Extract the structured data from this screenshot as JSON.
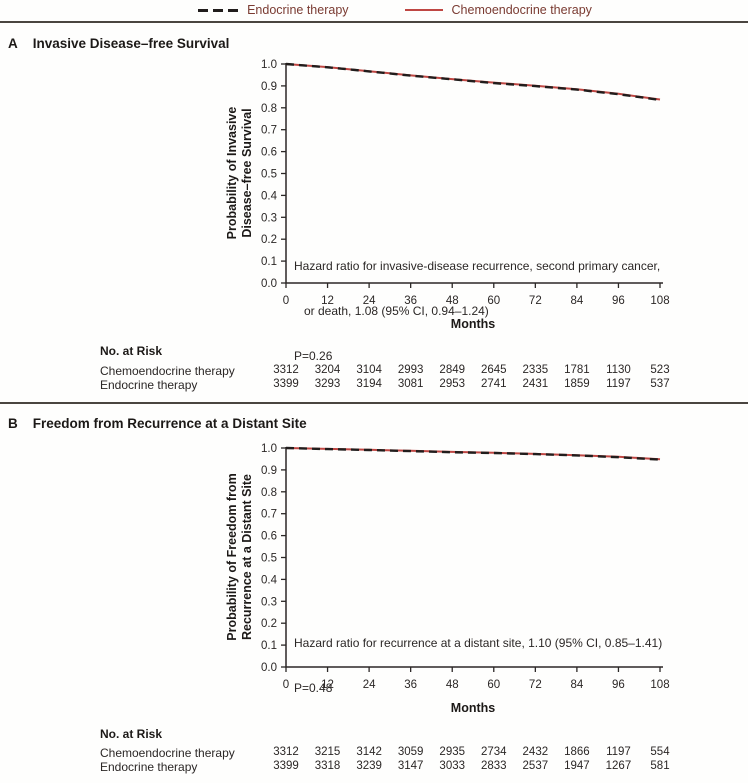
{
  "figure": {
    "legend": {
      "items": [
        {
          "label": "Endocrine therapy",
          "line_style": "dashed",
          "color": "#211d1c"
        },
        {
          "label": "Chemoendocrine therapy",
          "line_style": "solid",
          "color": "#bf4743"
        }
      ]
    },
    "panels": [
      {
        "letter": "A",
        "title": "Invasive Disease–free Survival",
        "ylabel_lines": [
          "Probability of Invasive",
          "Disease–free Survival"
        ],
        "xlabel": "Months",
        "annotation_lines": [
          "Hazard ratio for invasive-disease recurrence, second primary cancer,",
          "   or death, 1.08 (95% CI, 0.94–1.24)",
          "P=0.26"
        ],
        "risk_table": {
          "title": "No. at Risk",
          "rows": [
            {
              "label": "Chemoendocrine therapy",
              "values": [
                3312,
                3204,
                3104,
                2993,
                2849,
                2645,
                2335,
                1781,
                1130,
                523
              ]
            },
            {
              "label": "Endocrine therapy",
              "values": [
                3399,
                3293,
                3194,
                3081,
                2953,
                2741,
                2431,
                1859,
                1197,
                537
              ]
            }
          ]
        }
      },
      {
        "letter": "B",
        "title": "Freedom from Recurrence at a Distant Site",
        "ylabel_lines": [
          "Probability of Freedom from",
          "Recurrence at a Distant Site"
        ],
        "xlabel": "Months",
        "annotation_lines": [
          "Hazard ratio for recurrence at a distant site, 1.10 (95% CI, 0.85–1.41)",
          "P=0.48"
        ],
        "risk_table": {
          "title": "No. at Risk",
          "rows": [
            {
              "label": "Chemoendocrine therapy",
              "values": [
                3312,
                3215,
                3142,
                3059,
                2935,
                2734,
                2432,
                1866,
                1197,
                554
              ]
            },
            {
              "label": "Endocrine therapy",
              "values": [
                3399,
                3318,
                3239,
                3147,
                3033,
                2833,
                2537,
                1947,
                1267,
                581
              ]
            }
          ]
        }
      }
    ]
  },
  "chart_data": [
    {
      "type": "line",
      "panel": "A",
      "title": "Invasive Disease–free Survival",
      "xlabel": "Months",
      "ylabel": "Probability of Invasive Disease–free Survival",
      "x": [
        0,
        12,
        24,
        36,
        48,
        60,
        72,
        84,
        96,
        108
      ],
      "xticks": [
        0,
        12,
        24,
        36,
        48,
        60,
        72,
        84,
        96,
        108
      ],
      "yticks": [
        0.0,
        0.1,
        0.2,
        0.3,
        0.4,
        0.5,
        0.6,
        0.7,
        0.8,
        0.9,
        1.0
      ],
      "xlim": [
        0,
        108
      ],
      "ylim": [
        0.0,
        1.0
      ],
      "grid": false,
      "legend_position": "top-center",
      "series": [
        {
          "name": "Endocrine therapy",
          "line_style": "dashed",
          "color": "#211d1c",
          "values": [
            1.0,
            0.985,
            0.966,
            0.947,
            0.93,
            0.913,
            0.899,
            0.883,
            0.862,
            0.836
          ]
        },
        {
          "name": "Chemoendocrine therapy",
          "line_style": "solid",
          "color": "#bf4743",
          "values": [
            1.0,
            0.986,
            0.967,
            0.948,
            0.931,
            0.915,
            0.901,
            0.885,
            0.864,
            0.838
          ]
        }
      ],
      "annotation": "Hazard ratio for invasive-disease recurrence, second primary cancer, or death, 1.08 (95% CI, 0.94–1.24)",
      "p_value": "P=0.26"
    },
    {
      "type": "line",
      "panel": "B",
      "title": "Freedom from Recurrence at a Distant Site",
      "xlabel": "Months",
      "ylabel": "Probability of Freedom from Recurrence at a Distant Site",
      "x": [
        0,
        12,
        24,
        36,
        48,
        60,
        72,
        84,
        96,
        108
      ],
      "xticks": [
        0,
        12,
        24,
        36,
        48,
        60,
        72,
        84,
        96,
        108
      ],
      "yticks": [
        0.0,
        0.1,
        0.2,
        0.3,
        0.4,
        0.5,
        0.6,
        0.7,
        0.8,
        0.9,
        1.0
      ],
      "xlim": [
        0,
        108
      ],
      "ylim": [
        0.0,
        1.0
      ],
      "grid": false,
      "legend_position": "top-center",
      "series": [
        {
          "name": "Endocrine therapy",
          "line_style": "dashed",
          "color": "#211d1c",
          "values": [
            1.0,
            0.995,
            0.991,
            0.986,
            0.981,
            0.977,
            0.972,
            0.966,
            0.958,
            0.947
          ]
        },
        {
          "name": "Chemoendocrine therapy",
          "line_style": "solid",
          "color": "#bf4743",
          "values": [
            1.0,
            0.996,
            0.992,
            0.987,
            0.982,
            0.978,
            0.973,
            0.967,
            0.96,
            0.949
          ]
        }
      ],
      "annotation": "Hazard ratio for recurrence at a distant site, 1.10 (95% CI, 0.85–1.41)",
      "p_value": "P=0.48"
    }
  ]
}
